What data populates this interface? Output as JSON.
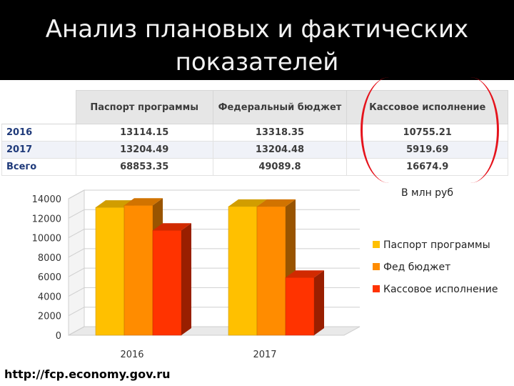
{
  "header": {
    "title_line1": "Анализ плановых и фактических",
    "title_line2": "показателей"
  },
  "table": {
    "columns": [
      "",
      "Паспорт программы",
      "Федеральный бюджет",
      "Кассовое исполнение"
    ],
    "rows": [
      {
        "label": "2016",
        "values": [
          "13114.15",
          "13318.35",
          "10755.21"
        ]
      },
      {
        "label": "2017",
        "values": [
          "13204.49",
          "13204.48",
          "5919.69"
        ]
      },
      {
        "label": "Всего",
        "values": [
          "68853.35",
          "49089.8",
          "16674.9"
        ]
      }
    ]
  },
  "unit_label": "В млн руб",
  "source": "http://fcp.economy.gov.ru",
  "colors": {
    "bracket": "#e5131c",
    "title_band": "#000000"
  },
  "chart_data": {
    "type": "bar",
    "categories": [
      "2016",
      "2017"
    ],
    "series": [
      {
        "name": "Паспорт программы",
        "values": [
          13114.15,
          13204.49
        ],
        "color": "#ffc000"
      },
      {
        "name": "Фед бюджет",
        "values": [
          13318.35,
          13204.48
        ],
        "color": "#ff8c00"
      },
      {
        "name": "Кассовое исполнение",
        "values": [
          10755.21,
          5919.69
        ],
        "color": "#ff3300"
      }
    ],
    "ylim": [
      0,
      14000
    ],
    "yticks": [
      0,
      2000,
      4000,
      6000,
      8000,
      10000,
      12000,
      14000
    ],
    "grid": true,
    "legend": "right",
    "three_d": true
  }
}
